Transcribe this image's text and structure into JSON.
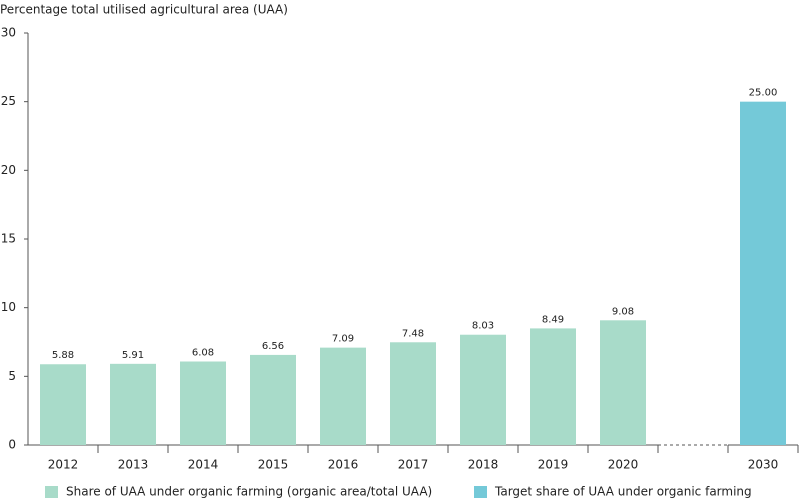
{
  "chart_data": {
    "type": "bar",
    "title": "Percentage total utilised agricultural area (UAA)",
    "categories": [
      "2012",
      "2013",
      "2014",
      "2015",
      "2016",
      "2017",
      "2018",
      "2019",
      "2020",
      null,
      "2030"
    ],
    "series": [
      {
        "name": "Share of UAA under organic farming (organic area/total UAA)",
        "color": "#a8dbc9",
        "values": [
          5.88,
          5.91,
          6.08,
          6.56,
          7.09,
          7.48,
          8.03,
          8.49,
          9.08,
          null,
          null
        ]
      },
      {
        "name": "Target share of UAA under organic farming",
        "color": "#74c9d8",
        "values": [
          null,
          null,
          null,
          null,
          null,
          null,
          null,
          null,
          null,
          null,
          25
        ],
        "value_labels": [
          null,
          null,
          null,
          null,
          null,
          null,
          null,
          null,
          null,
          null,
          "25.00"
        ]
      }
    ],
    "ylim": [
      0,
      30
    ],
    "yticks": [
      0,
      5,
      10,
      15,
      20,
      25,
      30
    ]
  }
}
